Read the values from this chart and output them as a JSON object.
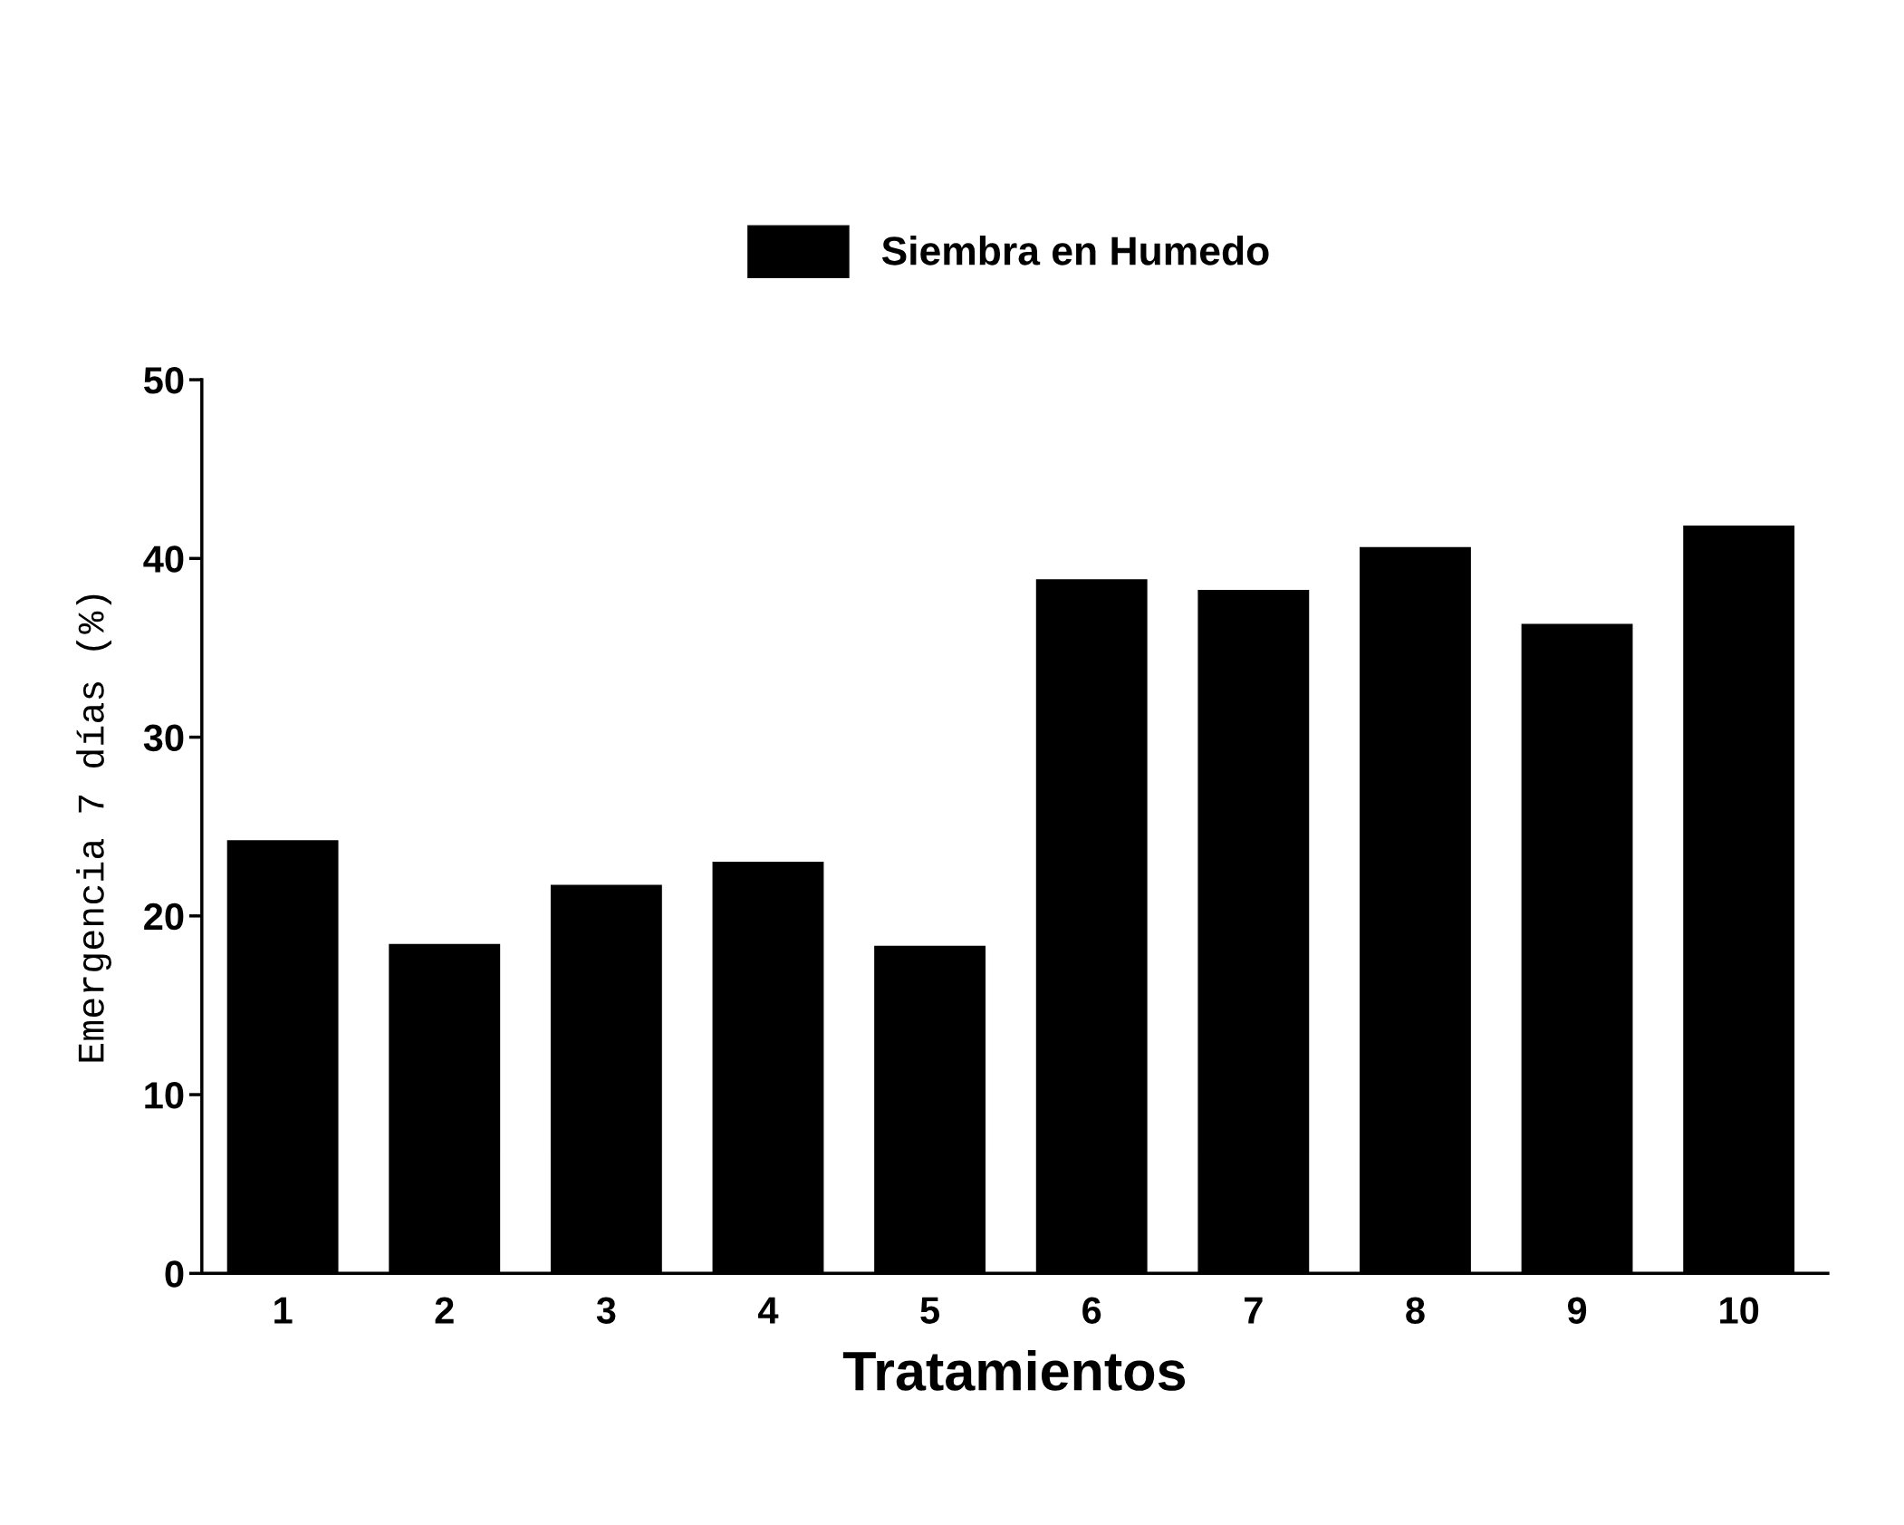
{
  "chart_data": {
    "type": "bar",
    "xlabel": "Tratamientos",
    "ylabel": "Emergencia 7 días (%)",
    "categories": [
      "1",
      "2",
      "3",
      "4",
      "5",
      "6",
      "7",
      "8",
      "9",
      "10"
    ],
    "series": [
      {
        "name": "Siembra en Humedo",
        "color": "#000000",
        "values": [
          24.2,
          18.4,
          21.7,
          23.0,
          18.3,
          38.8,
          38.2,
          40.6,
          36.3,
          41.8
        ]
      }
    ],
    "ylim": [
      0,
      50
    ],
    "yticks": [
      0,
      10,
      20,
      30,
      40,
      50
    ],
    "grid": false,
    "legend": "top"
  }
}
